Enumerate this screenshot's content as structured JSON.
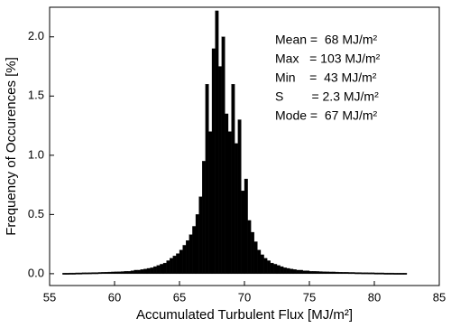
{
  "chart_data": {
    "type": "histogram",
    "xlabel": "Accumulated Turbulent Flux [MJ/m²]",
    "ylabel": "Frequency of Occurences [%]",
    "annotations": [
      "Mean =  68 MJ/m²",
      "Max   = 103 MJ/m²",
      "Min    =  43 MJ/m²",
      "S        = 2.3 MJ/m²",
      "Mode =  67 MJ/m²"
    ],
    "color": "#000000",
    "xlim": [
      55,
      85
    ],
    "ylim": [
      -0.1,
      2.25
    ],
    "xticks": [
      55,
      60,
      65,
      70,
      75,
      80,
      85
    ],
    "yticks": [
      {
        "value": 0,
        "label": "0.0"
      },
      {
        "value": 0.5,
        "label": "0.5"
      },
      {
        "value": 1,
        "label": "1.0"
      },
      {
        "value": 1.5,
        "label": "1.5"
      },
      {
        "value": 2,
        "label": "2.0"
      }
    ],
    "bins": [
      56,
      56.25,
      56.5,
      56.75,
      57,
      57.25,
      57.5,
      57.75,
      58,
      58.25,
      58.5,
      58.75,
      59,
      59.25,
      59.5,
      59.75,
      60,
      60.25,
      60.5,
      60.75,
      61,
      61.25,
      61.5,
      61.75,
      62,
      62.25,
      62.5,
      62.75,
      63,
      63.25,
      63.5,
      63.75,
      64,
      64.25,
      64.5,
      64.75,
      65,
      65.25,
      65.5,
      65.75,
      66,
      66.25,
      66.5,
      66.75,
      67,
      67.25,
      67.5,
      67.75,
      68,
      68.25,
      68.5,
      68.75,
      69,
      69.25,
      69.5,
      69.75,
      70,
      70.25,
      70.5,
      70.75,
      71,
      71.25,
      71.5,
      71.75,
      72,
      72.25,
      72.5,
      72.75,
      73,
      73.25,
      73.5,
      73.75,
      74,
      74.25,
      74.5,
      74.75,
      75,
      75.25,
      75.5,
      75.75,
      76,
      76.25,
      76.5,
      76.75,
      77,
      77.25,
      77.5,
      77.75,
      78,
      78.25,
      78.5,
      78.75,
      79,
      79.25,
      79.5,
      79.75,
      80,
      80.25,
      80.5,
      80.75,
      81,
      81.25,
      81.5,
      81.75,
      82,
      82.25,
      82.5
    ],
    "values": [
      0.005,
      0.005,
      0.006,
      0.006,
      0.007,
      0.007,
      0.008,
      0.008,
      0.009,
      0.01,
      0.01,
      0.011,
      0.012,
      0.013,
      0.014,
      0.015,
      0.016,
      0.017,
      0.018,
      0.02,
      0.02,
      0.025,
      0.03,
      0.03,
      0.035,
      0.04,
      0.045,
      0.05,
      0.06,
      0.07,
      0.08,
      0.09,
      0.11,
      0.13,
      0.15,
      0.17,
      0.2,
      0.24,
      0.28,
      0.33,
      0.4,
      0.5,
      0.65,
      0.95,
      1.6,
      1.2,
      1.9,
      2.22,
      1.75,
      2.0,
      1.35,
      1.2,
      1.6,
      1.1,
      1.3,
      0.7,
      0.8,
      0.45,
      0.35,
      0.27,
      0.2,
      0.16,
      0.13,
      0.11,
      0.09,
      0.08,
      0.07,
      0.06,
      0.05,
      0.045,
      0.04,
      0.035,
      0.03,
      0.03,
      0.025,
      0.025,
      0.02,
      0.02,
      0.019,
      0.018,
      0.017,
      0.016,
      0.015,
      0.015,
      0.014,
      0.013,
      0.012,
      0.012,
      0.011,
      0.011,
      0.01,
      0.01,
      0.009,
      0.009,
      0.008,
      0.008,
      0.007,
      0.007,
      0.007,
      0.006,
      0.006,
      0.006,
      0.005,
      0.005,
      0.005,
      0.005
    ]
  }
}
